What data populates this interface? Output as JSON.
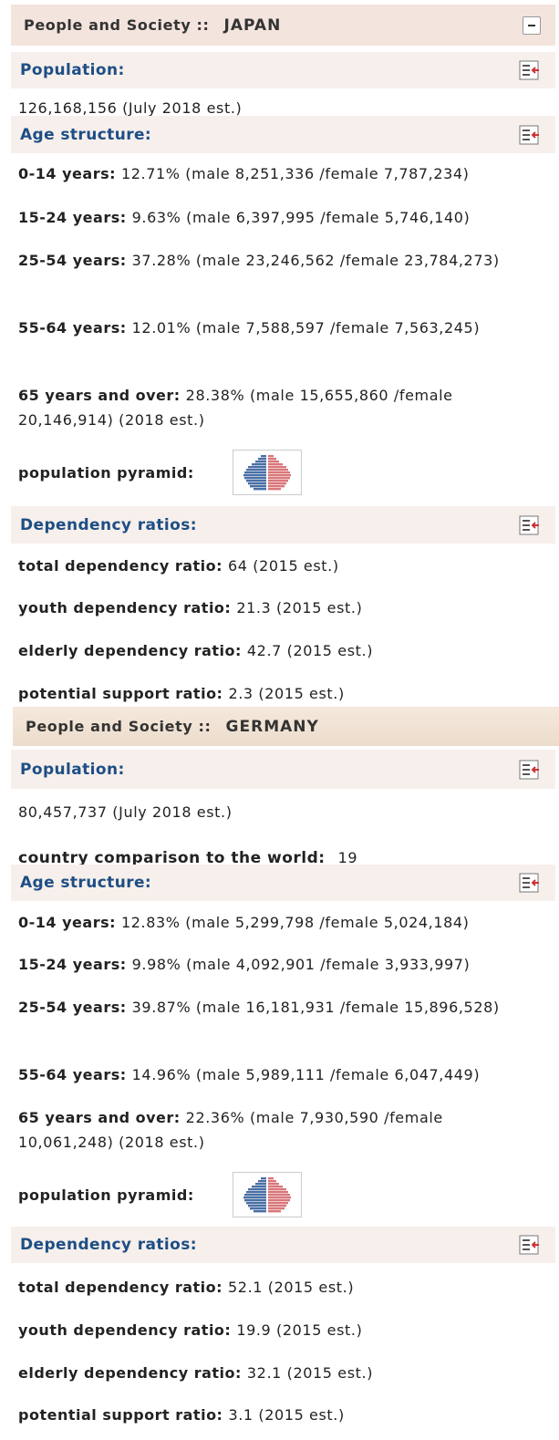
{
  "sections": [
    {
      "header": {
        "label": "People and Society ::",
        "country": "JAPAN"
      },
      "population": {
        "title": "Population:",
        "text": "126,168,156 (July 2018 est.)"
      },
      "age_structure": {
        "title": "Age structure:",
        "items": [
          {
            "label": "0-14 years:",
            "text": "12.71% (male 8,251,336 /female 7,787,234)"
          },
          {
            "label": "15-24 years:",
            "text": "9.63% (male 6,397,995 /female 5,746,140)"
          },
          {
            "label": "25-54 years:",
            "text": "37.28% (male 23,246,562 /female 23,784,273)"
          },
          {
            "label": "55-64 years:",
            "text": "12.01% (male 7,588,597 /female 7,563,245)"
          },
          {
            "label": "65 years and over:",
            "text": "28.38% (male 15,655,860 /female 20,146,914) (2018 est.)"
          }
        ]
      },
      "pyramid_label": "population pyramid:",
      "dependency": {
        "title": "Dependency ratios:",
        "items": [
          {
            "label": "total dependency ratio:",
            "text": "64 (2015 est.)"
          },
          {
            "label": "youth dependency ratio:",
            "text": "21.3 (2015 est.)"
          },
          {
            "label": "elderly dependency ratio:",
            "text": "42.7 (2015 est.)"
          },
          {
            "label": "potential support ratio:",
            "text": "2.3 (2015 est.)"
          }
        ]
      }
    },
    {
      "header": {
        "label": "People and Society ::",
        "country": "GERMANY"
      },
      "population": {
        "title": "Population:",
        "text": "80,457,737 (July 2018 est.)",
        "comparison": {
          "label": "country comparison to the world:",
          "value": "19"
        }
      },
      "age_structure": {
        "title": "Age structure:",
        "items": [
          {
            "label": "0-14 years:",
            "text": "12.83% (male 5,299,798 /female 5,024,184)"
          },
          {
            "label": "15-24 years:",
            "text": "9.98% (male 4,092,901 /female 3,933,997)"
          },
          {
            "label": "25-54 years:",
            "text": "39.87% (male 16,181,931 /female 15,896,528)"
          },
          {
            "label": "55-64 years:",
            "text": "14.96% (male 5,989,111 /female 6,047,449)"
          },
          {
            "label": "65 years and over:",
            "text": "22.36% (male 7,930,590 /female 10,061,248) (2018 est.)"
          }
        ]
      },
      "pyramid_label": "population pyramid:",
      "dependency": {
        "title": "Dependency ratios:",
        "items": [
          {
            "label": "total dependency ratio:",
            "text": "52.1 (2015 est.)"
          },
          {
            "label": "youth dependency ratio:",
            "text": "19.9 (2015 est.)"
          },
          {
            "label": "elderly dependency ratio:",
            "text": "32.1 (2015 est.)"
          },
          {
            "label": "potential support ratio:",
            "text": "3.1 (2015 est.)"
          }
        ]
      }
    }
  ]
}
